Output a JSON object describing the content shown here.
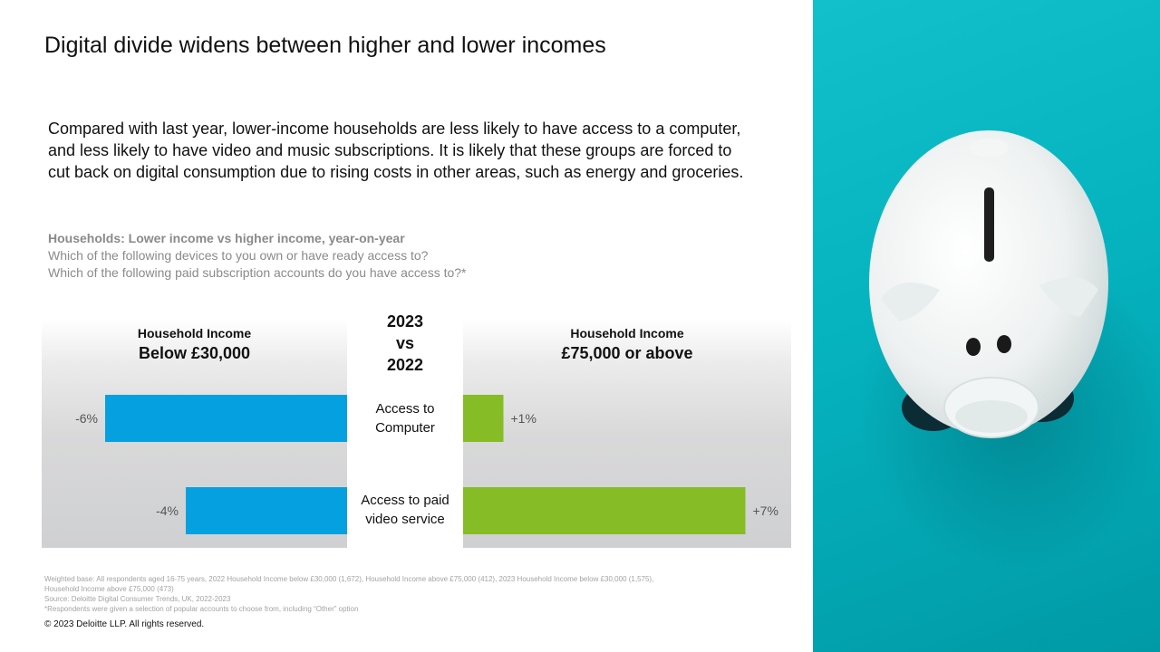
{
  "title": "Digital divide widens between higher and lower incomes",
  "intro": [
    "Compared with last year, lower-income households are less likely to have access to a computer,",
    "and less likely to have video and music subscriptions. It is likely that these groups are forced to",
    "cut back on digital consumption due to rising costs in other areas, such as energy and groceries."
  ],
  "subhead": {
    "bold": "Households: Lower income vs higher income, year-on-year",
    "q1": "Which of the following devices to you own or have ready access to?",
    "q2": "Which of the following paid subscription accounts do you have access to?*"
  },
  "chart_data": {
    "type": "bar",
    "center_heading": [
      "2023",
      "vs",
      "2022"
    ],
    "categories": [
      [
        "Access to",
        "Computer"
      ],
      [
        "Access to paid",
        "video service"
      ]
    ],
    "series": [
      {
        "name": "Household Income Below £30,000",
        "header_line1": "Household Income",
        "header_line2": "Below £30,000",
        "values": [
          -6,
          -4
        ],
        "labels": [
          "-6%",
          "-4%"
        ],
        "color": "#05a0df"
      },
      {
        "name": "Household Income £75,000 or above",
        "header_line1": "Household Income",
        "header_line2": "£75,000 or above",
        "values": [
          1,
          7
        ],
        "labels": [
          "+1%",
          "+7%"
        ],
        "color": "#86bc25"
      }
    ],
    "unit": "%"
  },
  "footnotes": [
    "Weighted base: All respondents aged 16-75 years, 2022 Household Income below £30,000 (1,672), Household Income above £75,000 (412), 2023 Household Income below £30,000 (1,575),",
    "Household Income above £75,000 (473)",
    "Source: Deloitte Digital Consumer Trends, UK, 2022-2023",
    "*Respondents were given a selection of popular accounts to choose from, including “Other” option"
  ],
  "copyright": "© 2023 Deloitte LLP. All rights reserved.",
  "colors": {
    "background_teal": "#05b3bf",
    "negative_bar": "#05a0df",
    "positive_bar": "#86bc25"
  },
  "image": {
    "subject": "piggy-bank"
  }
}
